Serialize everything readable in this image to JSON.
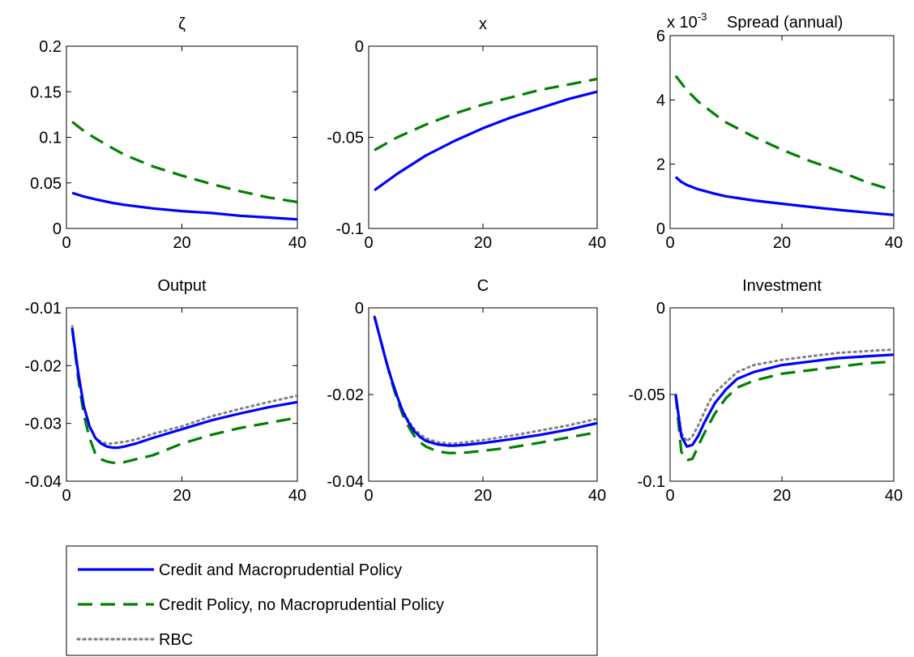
{
  "legend": {
    "entries": [
      {
        "label": "Credit and Macroprudential Policy",
        "color": "#0000ff",
        "style": "solid"
      },
      {
        "label": "Credit Policy, no Macroprudential Policy",
        "color": "#008000",
        "style": "dashed"
      },
      {
        "label": "RBC",
        "color": "#808080",
        "style": "dotted"
      }
    ]
  },
  "chart_data": [
    {
      "type": "line",
      "title": "ζ",
      "xlim": [
        0,
        40
      ],
      "ylim": [
        0,
        0.2
      ],
      "xticks": [
        0,
        20,
        40
      ],
      "xtick_labels": [
        "0",
        "20",
        "40"
      ],
      "yticks": [
        0,
        0.05,
        0.1,
        0.15,
        0.2
      ],
      "ytick_labels": [
        "0",
        "0.05",
        "0.1",
        "0.15",
        "0.2"
      ],
      "series": [
        {
          "name": "Credit and Macroprudential Policy",
          "x": [
            1,
            2,
            3,
            5,
            8,
            10,
            15,
            20,
            25,
            30,
            35,
            40
          ],
          "y": [
            0.039,
            0.037,
            0.035,
            0.032,
            0.028,
            0.026,
            0.022,
            0.019,
            0.017,
            0.014,
            0.012,
            0.01
          ]
        },
        {
          "name": "Credit Policy, no Macroprudential Policy",
          "x": [
            1,
            3,
            5,
            8,
            10,
            15,
            20,
            25,
            30,
            35,
            40
          ],
          "y": [
            0.117,
            0.107,
            0.099,
            0.088,
            0.081,
            0.068,
            0.058,
            0.049,
            0.041,
            0.034,
            0.029
          ]
        }
      ]
    },
    {
      "type": "line",
      "title": "x",
      "xlim": [
        0,
        40
      ],
      "ylim": [
        -0.1,
        0
      ],
      "xticks": [
        0,
        20,
        40
      ],
      "xtick_labels": [
        "0",
        "20",
        "40"
      ],
      "yticks": [
        -0.1,
        -0.05,
        0
      ],
      "ytick_labels": [
        "-0.1",
        "-0.05",
        "0"
      ],
      "series": [
        {
          "name": "Credit and Macroprudential Policy",
          "x": [
            1,
            5,
            10,
            15,
            20,
            25,
            30,
            35,
            40
          ],
          "y": [
            -0.079,
            -0.07,
            -0.06,
            -0.052,
            -0.045,
            -0.039,
            -0.034,
            -0.029,
            -0.025
          ]
        },
        {
          "name": "Credit Policy, no Macroprudential Policy",
          "x": [
            1,
            5,
            10,
            15,
            20,
            25,
            30,
            35,
            40
          ],
          "y": [
            -0.057,
            -0.05,
            -0.043,
            -0.037,
            -0.032,
            -0.028,
            -0.024,
            -0.021,
            -0.018
          ]
        }
      ]
    },
    {
      "type": "line",
      "title": "Spread (annual)",
      "y_multiplier": "x 10",
      "y_multiplier_exp": "-3",
      "xlim": [
        0,
        40
      ],
      "ylim": [
        0,
        6
      ],
      "xticks": [
        0,
        20,
        40
      ],
      "xtick_labels": [
        "0",
        "20",
        "40"
      ],
      "yticks": [
        0,
        2,
        4,
        6
      ],
      "ytick_labels": [
        "0",
        "2",
        "4",
        "6"
      ],
      "series": [
        {
          "name": "Credit and Macroprudential Policy",
          "x": [
            1,
            2,
            3,
            5,
            8,
            10,
            15,
            20,
            25,
            30,
            35,
            40
          ],
          "y": [
            1.6,
            1.45,
            1.35,
            1.22,
            1.08,
            1.0,
            0.87,
            0.77,
            0.67,
            0.58,
            0.5,
            0.42
          ]
        },
        {
          "name": "Credit Policy, no Macroprudential Policy",
          "x": [
            1,
            3,
            5,
            8,
            10,
            15,
            20,
            25,
            30,
            35,
            40
          ],
          "y": [
            4.75,
            4.3,
            3.95,
            3.55,
            3.3,
            2.85,
            2.45,
            2.1,
            1.8,
            1.45,
            1.18
          ]
        }
      ]
    },
    {
      "type": "line",
      "title": "Output",
      "xlim": [
        0,
        40
      ],
      "ylim": [
        -0.04,
        -0.01
      ],
      "xticks": [
        0,
        20,
        40
      ],
      "xtick_labels": [
        "0",
        "20",
        "40"
      ],
      "yticks": [
        -0.04,
        -0.03,
        -0.02,
        -0.01
      ],
      "ytick_labels": [
        "-0.04",
        "-0.03",
        "-0.02",
        "-0.01"
      ],
      "series": [
        {
          "name": "Credit and Macroprudential Policy",
          "x": [
            1,
            2,
            3,
            4,
            5,
            6,
            7,
            8,
            9,
            10,
            12,
            15,
            20,
            25,
            30,
            35,
            40
          ],
          "y": [
            -0.0135,
            -0.021,
            -0.027,
            -0.0305,
            -0.0325,
            -0.0335,
            -0.034,
            -0.0342,
            -0.0342,
            -0.034,
            -0.0335,
            -0.0325,
            -0.031,
            -0.0295,
            -0.0283,
            -0.0272,
            -0.0263
          ]
        },
        {
          "name": "Credit Policy, no Macroprudential Policy",
          "x": [
            1,
            2,
            3,
            4,
            5,
            6,
            7,
            8,
            9,
            10,
            12,
            15,
            20,
            25,
            30,
            35,
            40
          ],
          "y": [
            -0.0135,
            -0.022,
            -0.0285,
            -0.0325,
            -0.0352,
            -0.0362,
            -0.0366,
            -0.0368,
            -0.0368,
            -0.0367,
            -0.0362,
            -0.0355,
            -0.0335,
            -0.032,
            -0.0308,
            -0.0299,
            -0.029
          ]
        },
        {
          "name": "RBC",
          "x": [
            1,
            2,
            3,
            4,
            5,
            6,
            7,
            8,
            9,
            10,
            12,
            15,
            20,
            25,
            30,
            35,
            40
          ],
          "y": [
            -0.0132,
            -0.021,
            -0.027,
            -0.0305,
            -0.0325,
            -0.0332,
            -0.0335,
            -0.0335,
            -0.0333,
            -0.0332,
            -0.0328,
            -0.0318,
            -0.0305,
            -0.0288,
            -0.0275,
            -0.0263,
            -0.0252
          ]
        }
      ]
    },
    {
      "type": "line",
      "title": "C",
      "xlim": [
        0,
        40
      ],
      "ylim": [
        -0.04,
        0
      ],
      "xticks": [
        0,
        20,
        40
      ],
      "xtick_labels": [
        "0",
        "20",
        "40"
      ],
      "yticks": [
        -0.04,
        -0.02,
        0
      ],
      "ytick_labels": [
        "-0.04",
        "-0.02",
        "0"
      ],
      "series": [
        {
          "name": "Credit and Macroprudential Policy",
          "x": [
            1,
            2,
            3,
            4,
            5,
            6,
            7,
            8,
            9,
            10,
            12,
            14,
            15,
            17,
            20,
            25,
            30,
            35,
            40
          ],
          "y": [
            -0.002,
            -0.007,
            -0.012,
            -0.0165,
            -0.0205,
            -0.024,
            -0.0265,
            -0.0285,
            -0.0298,
            -0.0307,
            -0.0315,
            -0.0318,
            -0.0318,
            -0.0316,
            -0.0312,
            -0.0303,
            -0.0293,
            -0.0281,
            -0.0266
          ]
        },
        {
          "name": "Credit Policy, no Macroprudential Policy",
          "x": [
            1,
            2,
            3,
            4,
            5,
            6,
            7,
            8,
            9,
            10,
            12,
            14,
            15,
            17,
            20,
            25,
            30,
            35,
            40
          ],
          "y": [
            -0.002,
            -0.007,
            -0.012,
            -0.017,
            -0.0212,
            -0.0248,
            -0.0275,
            -0.0296,
            -0.031,
            -0.032,
            -0.0331,
            -0.0335,
            -0.0335,
            -0.0334,
            -0.033,
            -0.0322,
            -0.0311,
            -0.0299,
            -0.0287
          ]
        },
        {
          "name": "RBC",
          "x": [
            1,
            2,
            3,
            4,
            5,
            6,
            7,
            8,
            9,
            10,
            12,
            14,
            15,
            17,
            20,
            25,
            30,
            35,
            40
          ],
          "y": [
            -0.002,
            -0.007,
            -0.012,
            -0.0165,
            -0.0205,
            -0.0238,
            -0.0262,
            -0.028,
            -0.0292,
            -0.0301,
            -0.031,
            -0.0313,
            -0.0313,
            -0.031,
            -0.0305,
            -0.0295,
            -0.0283,
            -0.0271,
            -0.0256
          ]
        }
      ]
    },
    {
      "type": "line",
      "title": "Investment",
      "xlim": [
        0,
        40
      ],
      "ylim": [
        -0.1,
        0
      ],
      "xticks": [
        0,
        20,
        40
      ],
      "xtick_labels": [
        "0",
        "20",
        "40"
      ],
      "yticks": [
        -0.1,
        -0.05,
        0
      ],
      "ytick_labels": [
        "-0.1",
        "-0.05",
        "0"
      ],
      "series": [
        {
          "name": "Credit and Macroprudential Policy",
          "x": [
            1,
            2,
            3,
            4,
            5,
            6,
            7,
            8,
            10,
            12,
            15,
            20,
            25,
            30,
            35,
            40
          ],
          "y": [
            -0.05,
            -0.074,
            -0.08,
            -0.079,
            -0.074,
            -0.067,
            -0.061,
            -0.055,
            -0.047,
            -0.041,
            -0.037,
            -0.033,
            -0.031,
            -0.029,
            -0.028,
            -0.027
          ]
        },
        {
          "name": "Credit Policy, no Macroprudential Policy",
          "x": [
            1,
            2,
            3,
            4,
            5,
            6,
            7,
            8,
            10,
            12,
            15,
            20,
            25,
            30,
            35,
            40
          ],
          "y": [
            -0.05,
            -0.083,
            -0.088,
            -0.087,
            -0.08,
            -0.073,
            -0.067,
            -0.061,
            -0.052,
            -0.046,
            -0.042,
            -0.038,
            -0.036,
            -0.034,
            -0.032,
            -0.031
          ]
        },
        {
          "name": "RBC",
          "x": [
            1,
            2,
            3,
            4,
            5,
            6,
            7,
            8,
            10,
            12,
            15,
            20,
            25,
            30,
            35,
            40
          ],
          "y": [
            -0.05,
            -0.072,
            -0.077,
            -0.074,
            -0.068,
            -0.061,
            -0.054,
            -0.049,
            -0.043,
            -0.037,
            -0.033,
            -0.03,
            -0.028,
            -0.026,
            -0.025,
            -0.024
          ]
        }
      ]
    }
  ]
}
